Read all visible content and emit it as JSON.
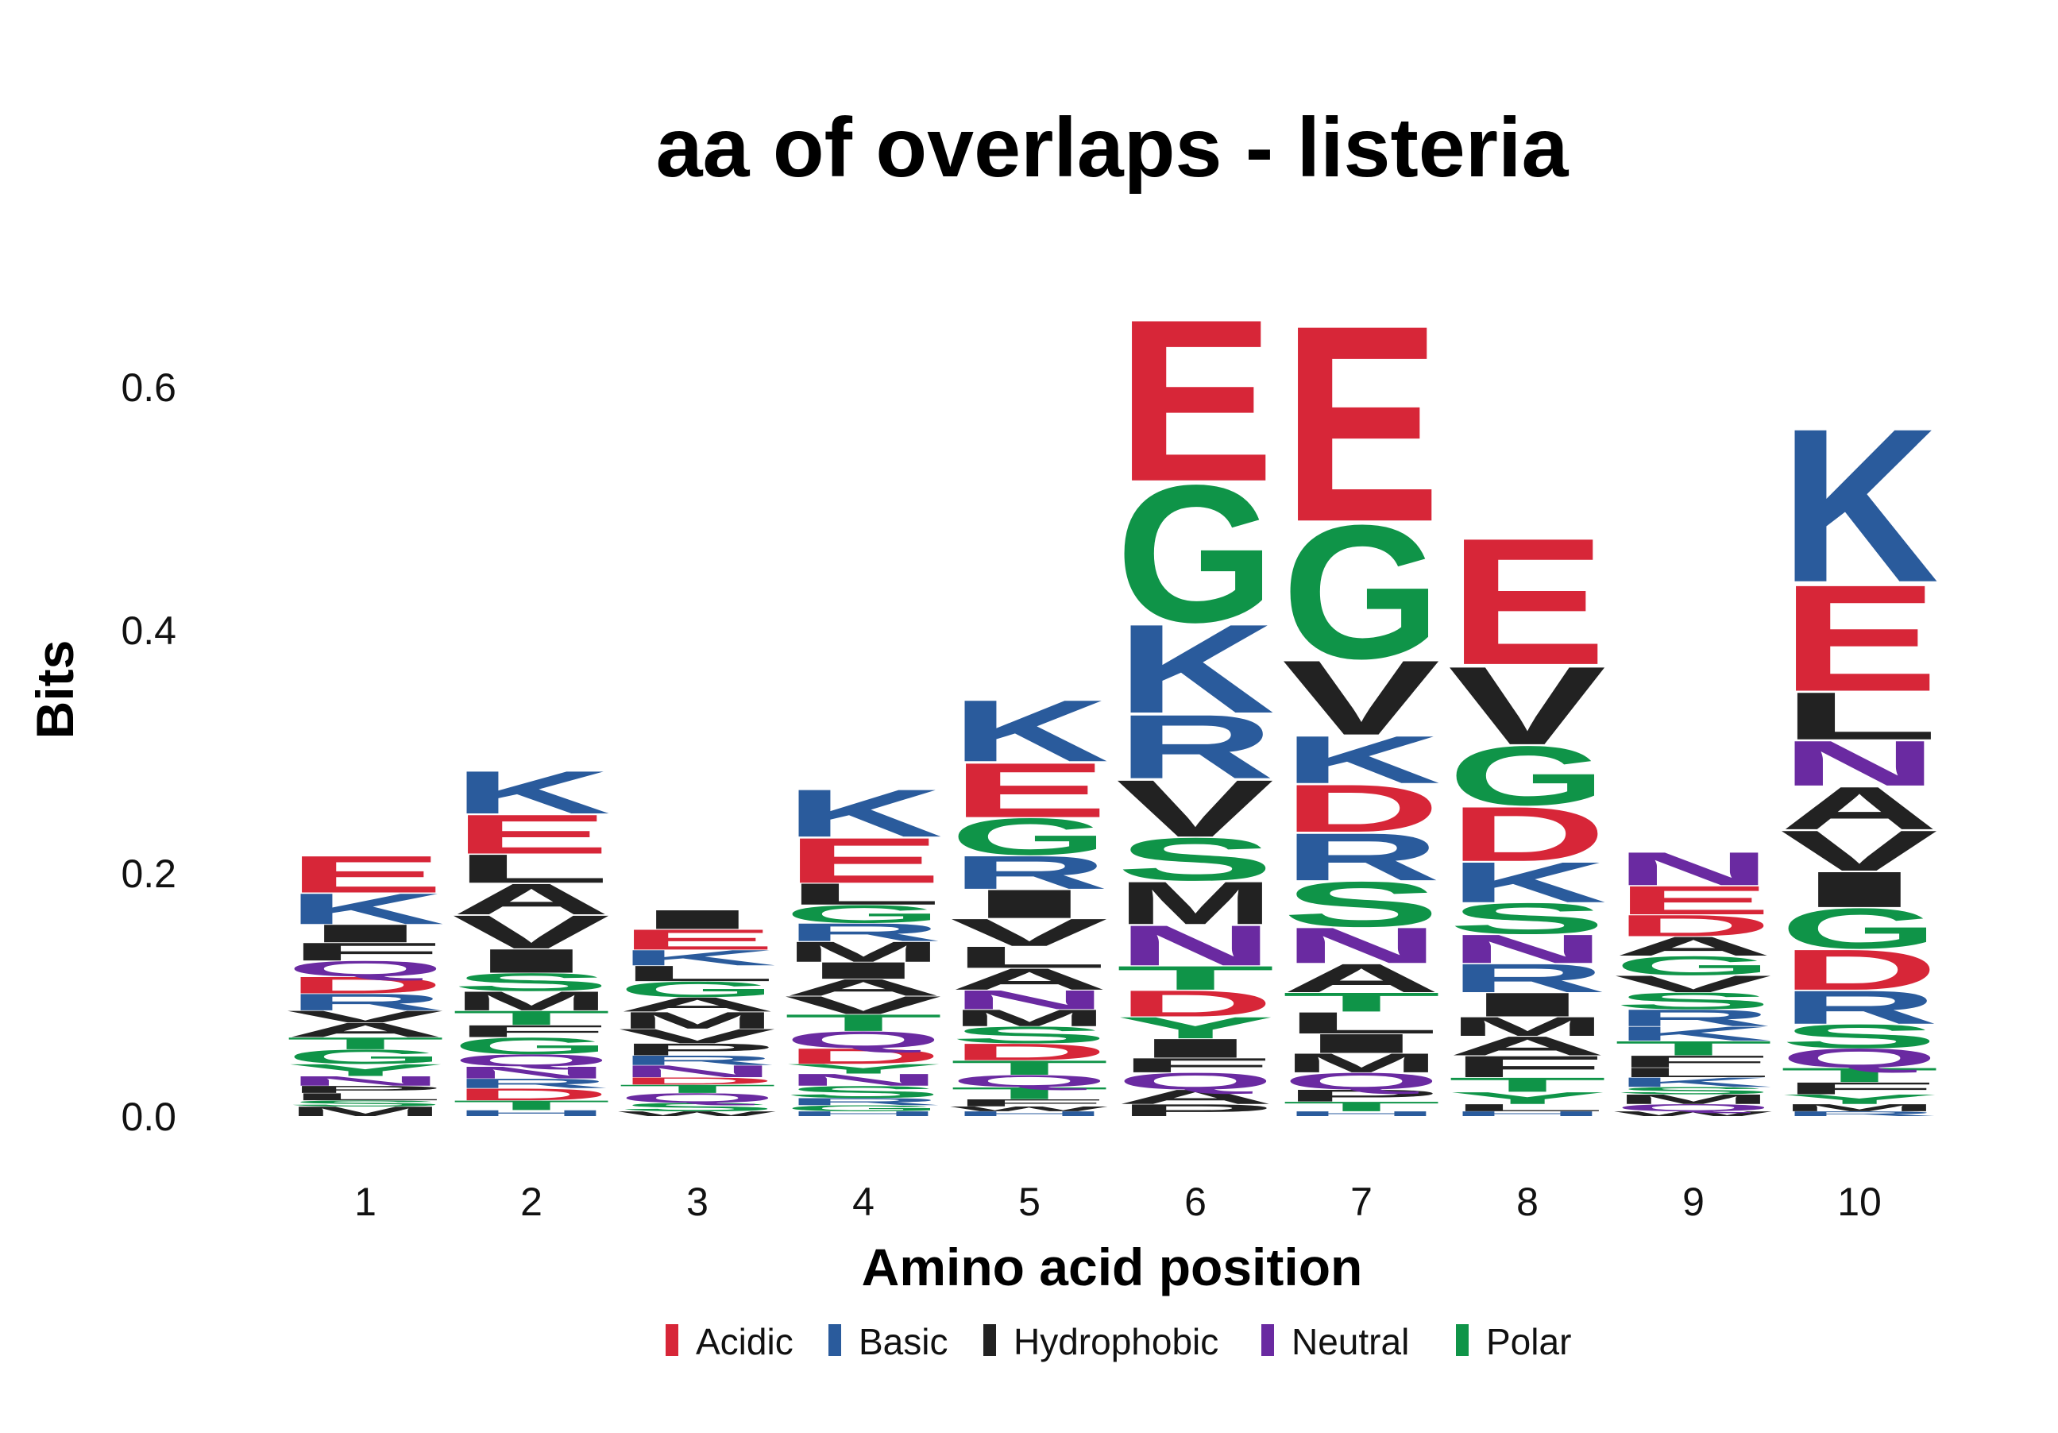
{
  "chart_data": {
    "type": "sequence-logo",
    "title": "aa of overlaps - listeria",
    "xlabel": "Amino acid position",
    "ylabel": "Bits",
    "ylim": [
      0,
      0.7
    ],
    "yticks": [
      "0.0",
      "0.2",
      "0.4",
      "0.6"
    ],
    "ytick_values": [
      0,
      0.2,
      0.4,
      0.6
    ],
    "categories": [
      "1",
      "2",
      "3",
      "4",
      "5",
      "6",
      "7",
      "8",
      "9",
      "10"
    ],
    "groups": [
      {
        "name": "Acidic",
        "color": "#d72638"
      },
      {
        "name": "Basic",
        "color": "#2a5b9c"
      },
      {
        "name": "Hydrophobic",
        "color": "#222222"
      },
      {
        "name": "Neutral",
        "color": "#6a2aa1"
      },
      {
        "name": "Polar",
        "color": "#0f9448"
      }
    ],
    "letter_groups": {
      "D": "Acidic",
      "E": "Acidic",
      "H": "Basic",
      "K": "Basic",
      "R": "Basic",
      "A": "Hydrophobic",
      "F": "Hydrophobic",
      "I": "Hydrophobic",
      "L": "Hydrophobic",
      "M": "Hydrophobic",
      "P": "Hydrophobic",
      "V": "Hydrophobic",
      "W": "Hydrophobic",
      "N": "Neutral",
      "Q": "Neutral",
      "C": "Polar",
      "G": "Polar",
      "S": "Polar",
      "T": "Polar",
      "Y": "Polar"
    },
    "stacks": [
      {
        "position": "1",
        "letters": [
          {
            "aa": "M",
            "bits": 0.008
          },
          {
            "aa": "S",
            "bits": 0.005
          },
          {
            "aa": "L",
            "bits": 0.006
          },
          {
            "aa": "P",
            "bits": 0.006
          },
          {
            "aa": "N",
            "bits": 0.008
          },
          {
            "aa": "Y",
            "bits": 0.01
          },
          {
            "aa": "G",
            "bits": 0.012
          },
          {
            "aa": "T",
            "bits": 0.01
          },
          {
            "aa": "A",
            "bits": 0.012
          },
          {
            "aa": "V",
            "bits": 0.01
          },
          {
            "aa": "R",
            "bits": 0.014
          },
          {
            "aa": "D",
            "bits": 0.014
          },
          {
            "aa": "Q",
            "bits": 0.013
          },
          {
            "aa": "F",
            "bits": 0.015
          },
          {
            "aa": "I",
            "bits": 0.015
          },
          {
            "aa": "K",
            "bits": 0.026
          },
          {
            "aa": "E",
            "bits": 0.031
          }
        ]
      },
      {
        "position": "2",
        "letters": [
          {
            "aa": "H",
            "bits": 0.005
          },
          {
            "aa": "T",
            "bits": 0.008
          },
          {
            "aa": "D",
            "bits": 0.01
          },
          {
            "aa": "R",
            "bits": 0.008
          },
          {
            "aa": "N",
            "bits": 0.01
          },
          {
            "aa": "Q",
            "bits": 0.01
          },
          {
            "aa": "G",
            "bits": 0.014
          },
          {
            "aa": "F",
            "bits": 0.01
          },
          {
            "aa": "T",
            "bits": 0.012
          },
          {
            "aa": "M",
            "bits": 0.016
          },
          {
            "aa": "S",
            "bits": 0.015
          },
          {
            "aa": "I",
            "bits": 0.02
          },
          {
            "aa": "V",
            "bits": 0.028
          },
          {
            "aa": "A",
            "bits": 0.026
          },
          {
            "aa": "L",
            "bits": 0.024
          },
          {
            "aa": "E",
            "bits": 0.033
          },
          {
            "aa": "K",
            "bits": 0.036
          }
        ]
      },
      {
        "position": "3",
        "letters": [
          {
            "aa": "W",
            "bits": 0.004
          },
          {
            "aa": "S",
            "bits": 0.007
          },
          {
            "aa": "Q",
            "bits": 0.008
          },
          {
            "aa": "T",
            "bits": 0.007
          },
          {
            "aa": "D",
            "bits": 0.006
          },
          {
            "aa": "N",
            "bits": 0.01
          },
          {
            "aa": "R",
            "bits": 0.008
          },
          {
            "aa": "P",
            "bits": 0.01
          },
          {
            "aa": "V",
            "bits": 0.012
          },
          {
            "aa": "M",
            "bits": 0.014
          },
          {
            "aa": "A",
            "bits": 0.012
          },
          {
            "aa": "G",
            "bits": 0.013
          },
          {
            "aa": "L",
            "bits": 0.013
          },
          {
            "aa": "K",
            "bits": 0.013
          },
          {
            "aa": "E",
            "bits": 0.017
          },
          {
            "aa": "I",
            "bits": 0.016
          }
        ]
      },
      {
        "position": "4",
        "letters": [
          {
            "aa": "H",
            "bits": 0.004
          },
          {
            "aa": "G",
            "bits": 0.005
          },
          {
            "aa": "R",
            "bits": 0.006
          },
          {
            "aa": "S",
            "bits": 0.01
          },
          {
            "aa": "N",
            "bits": 0.01
          },
          {
            "aa": "Y",
            "bits": 0.008
          },
          {
            "aa": "D",
            "bits": 0.013
          },
          {
            "aa": "Q",
            "bits": 0.014
          },
          {
            "aa": "T",
            "bits": 0.014
          },
          {
            "aa": "V",
            "bits": 0.015
          },
          {
            "aa": "A",
            "bits": 0.014
          },
          {
            "aa": "I",
            "bits": 0.014
          },
          {
            "aa": "M",
            "bits": 0.017
          },
          {
            "aa": "R",
            "bits": 0.015
          },
          {
            "aa": "G",
            "bits": 0.015
          },
          {
            "aa": "L",
            "bits": 0.018
          },
          {
            "aa": "E",
            "bits": 0.038
          },
          {
            "aa": "K",
            "bits": 0.04
          }
        ]
      },
      {
        "position": "5",
        "letters": [
          {
            "aa": "H",
            "bits": 0.004
          },
          {
            "aa": "W",
            "bits": 0.004
          },
          {
            "aa": "F",
            "bits": 0.006
          },
          {
            "aa": "T",
            "bits": 0.01
          },
          {
            "aa": "Q",
            "bits": 0.01
          },
          {
            "aa": "T",
            "bits": 0.012
          },
          {
            "aa": "D",
            "bits": 0.014
          },
          {
            "aa": "S",
            "bits": 0.014
          },
          {
            "aa": "M",
            "bits": 0.014
          },
          {
            "aa": "N",
            "bits": 0.016
          },
          {
            "aa": "A",
            "bits": 0.018
          },
          {
            "aa": "L",
            "bits": 0.018
          },
          {
            "aa": "V",
            "bits": 0.023
          },
          {
            "aa": "I",
            "bits": 0.024
          },
          {
            "aa": "R",
            "bits": 0.028
          },
          {
            "aa": "G",
            "bits": 0.031
          },
          {
            "aa": "E",
            "bits": 0.046
          },
          {
            "aa": "K",
            "bits": 0.052
          }
        ]
      },
      {
        "position": "6",
        "letters": [
          {
            "aa": "P",
            "bits": 0.01
          },
          {
            "aa": "A",
            "bits": 0.012
          },
          {
            "aa": "Q",
            "bits": 0.014
          },
          {
            "aa": "F",
            "bits": 0.012
          },
          {
            "aa": "I",
            "bits": 0.016
          },
          {
            "aa": "Y",
            "bits": 0.018
          },
          {
            "aa": "D",
            "bits": 0.022
          },
          {
            "aa": "T",
            "bits": 0.02
          },
          {
            "aa": "N",
            "bits": 0.034
          },
          {
            "aa": "M",
            "bits": 0.036
          },
          {
            "aa": "S",
            "bits": 0.036
          },
          {
            "aa": "V",
            "bits": 0.048
          },
          {
            "aa": "R",
            "bits": 0.054
          },
          {
            "aa": "K",
            "bits": 0.075
          },
          {
            "aa": "G",
            "bits": 0.116
          },
          {
            "aa": "E",
            "bits": 0.137
          }
        ]
      },
      {
        "position": "7",
        "letters": [
          {
            "aa": "H",
            "bits": 0.004
          },
          {
            "aa": "T",
            "bits": 0.008
          },
          {
            "aa": "P",
            "bits": 0.01
          },
          {
            "aa": "Q",
            "bits": 0.014
          },
          {
            "aa": "M",
            "bits": 0.016
          },
          {
            "aa": "I",
            "bits": 0.016
          },
          {
            "aa": "L",
            "bits": 0.018
          },
          {
            "aa": "T",
            "bits": 0.016
          },
          {
            "aa": "A",
            "bits": 0.024
          },
          {
            "aa": "N",
            "bits": 0.03
          },
          {
            "aa": "S",
            "bits": 0.038
          },
          {
            "aa": "R",
            "bits": 0.04
          },
          {
            "aa": "D",
            "bits": 0.04
          },
          {
            "aa": "K",
            "bits": 0.04
          },
          {
            "aa": "V",
            "bits": 0.063
          },
          {
            "aa": "G",
            "bits": 0.113
          },
          {
            "aa": "E",
            "bits": 0.166
          }
        ]
      },
      {
        "position": "8",
        "letters": [
          {
            "aa": "H",
            "bits": 0.004
          },
          {
            "aa": "L",
            "bits": 0.006
          },
          {
            "aa": "Y",
            "bits": 0.01
          },
          {
            "aa": "T",
            "bits": 0.012
          },
          {
            "aa": "F",
            "bits": 0.018
          },
          {
            "aa": "A",
            "bits": 0.016
          },
          {
            "aa": "M",
            "bits": 0.016
          },
          {
            "aa": "I",
            "bits": 0.02
          },
          {
            "aa": "R",
            "bits": 0.024
          },
          {
            "aa": "N",
            "bits": 0.024
          },
          {
            "aa": "S",
            "bits": 0.026
          },
          {
            "aa": "K",
            "bits": 0.034
          },
          {
            "aa": "D",
            "bits": 0.046
          },
          {
            "aa": "G",
            "bits": 0.05
          },
          {
            "aa": "V",
            "bits": 0.066
          },
          {
            "aa": "E",
            "bits": 0.107
          }
        ]
      },
      {
        "position": "9",
        "letters": [
          {
            "aa": "W",
            "bits": 0.004
          },
          {
            "aa": "Q",
            "bits": 0.006
          },
          {
            "aa": "M",
            "bits": 0.008
          },
          {
            "aa": "S",
            "bits": 0.006
          },
          {
            "aa": "K",
            "bits": 0.008
          },
          {
            "aa": "L",
            "bits": 0.008
          },
          {
            "aa": "F",
            "bits": 0.01
          },
          {
            "aa": "T",
            "bits": 0.012
          },
          {
            "aa": "K",
            "bits": 0.012
          },
          {
            "aa": "R",
            "bits": 0.014
          },
          {
            "aa": "S",
            "bits": 0.014
          },
          {
            "aa": "V",
            "bits": 0.014
          },
          {
            "aa": "G",
            "bits": 0.016
          },
          {
            "aa": "A",
            "bits": 0.016
          },
          {
            "aa": "D",
            "bits": 0.018
          },
          {
            "aa": "E",
            "bits": 0.024
          },
          {
            "aa": "N",
            "bits": 0.028
          }
        ]
      },
      {
        "position": "10",
        "letters": [
          {
            "aa": "R",
            "bits": 0.004
          },
          {
            "aa": "M",
            "bits": 0.006
          },
          {
            "aa": "Y",
            "bits": 0.008
          },
          {
            "aa": "F",
            "bits": 0.01
          },
          {
            "aa": "T",
            "bits": 0.012
          },
          {
            "aa": "Q",
            "bits": 0.016
          },
          {
            "aa": "S",
            "bits": 0.02
          },
          {
            "aa": "R",
            "bits": 0.028
          },
          {
            "aa": "D",
            "bits": 0.034
          },
          {
            "aa": "G",
            "bits": 0.034
          },
          {
            "aa": "I",
            "bits": 0.03
          },
          {
            "aa": "V",
            "bits": 0.034
          },
          {
            "aa": "A",
            "bits": 0.036
          },
          {
            "aa": "N",
            "bits": 0.038
          },
          {
            "aa": "L",
            "bits": 0.04
          },
          {
            "aa": "E",
            "bits": 0.09
          },
          {
            "aa": "K",
            "bits": 0.13
          }
        ]
      }
    ],
    "legend_position": "bottom",
    "grid": false
  }
}
